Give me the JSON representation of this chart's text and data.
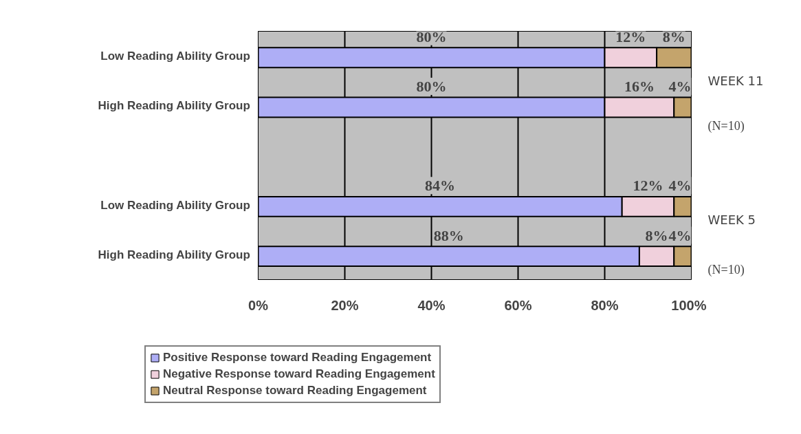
{
  "chart_data": {
    "type": "bar",
    "orientation": "horizontal",
    "stacked": true,
    "categories": [
      "Low Reading Ability Group",
      "High Reading Ability Group",
      null,
      "Low Reading Ability Group",
      "High Reading Ability Group"
    ],
    "series": [
      {
        "name": "Positive Response toward Reading Engagement",
        "color": "#aeaef6",
        "values": [
          80,
          80,
          null,
          84,
          88
        ],
        "value_labels": [
          "80%",
          "80%",
          null,
          "84%",
          "88%"
        ]
      },
      {
        "name": "Negative Response toward Reading Engagement",
        "color": "#f0d0dc",
        "values": [
          12,
          16,
          null,
          12,
          8
        ],
        "value_labels": [
          "12%",
          "16%",
          null,
          "12%",
          "8%"
        ]
      },
      {
        "name": "Neutral Response toward Reading Engagement",
        "color": "#c4a46c",
        "values": [
          8,
          4,
          null,
          4,
          4
        ],
        "value_labels": [
          "8%",
          "4%",
          null,
          "4%",
          "4%"
        ]
      }
    ],
    "xlim": [
      0,
      100
    ],
    "xticks": [
      {
        "value": 0,
        "label": "0%"
      },
      {
        "value": 20,
        "label": "20%"
      },
      {
        "value": 40,
        "label": "40%"
      },
      {
        "value": 60,
        "label": "60%"
      },
      {
        "value": 80,
        "label": "80%"
      },
      {
        "value": 100,
        "label": "100%"
      }
    ],
    "annotations": [
      "WEEK 11",
      "(N=10)",
      "WEEK 5",
      "(N=10)"
    ],
    "grid": "x",
    "legend": "bottom"
  }
}
